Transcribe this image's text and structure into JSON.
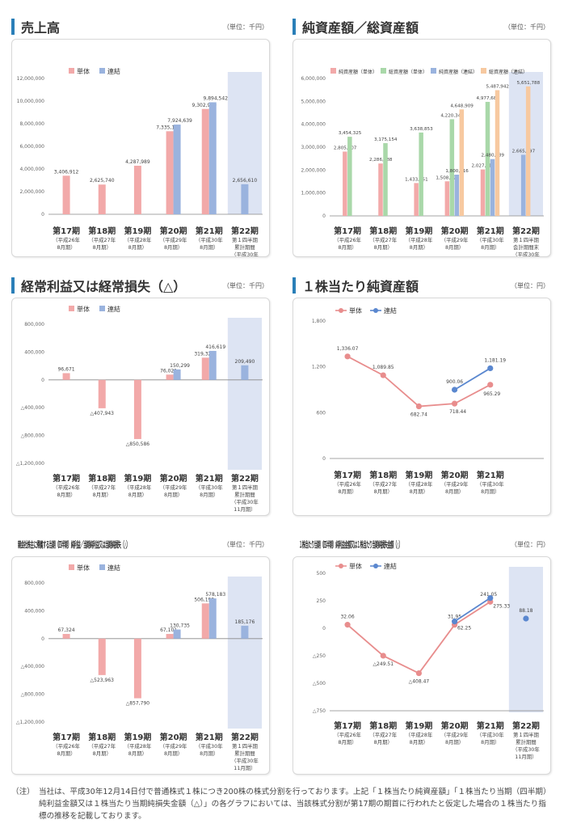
{
  "colors": {
    "single": "#f2a9a9",
    "consol": "#9ab3de",
    "net_single": "#f2a9a9",
    "total_single": "#a9d8a9",
    "net_consol": "#9ab3de",
    "total_consol": "#f7c9a0",
    "shade": "#dde4f3",
    "line_single": "#e88d8d",
    "line_consol": "#5a87cf",
    "axis": "#888",
    "accent": "#2a7fb8"
  },
  "periods": [
    "第17期",
    "第18期",
    "第19期",
    "第20期",
    "第21期",
    "第22期"
  ],
  "period_sub_a": [
    [
      "（平成26年",
      "8月期）"
    ],
    [
      "（平成27年",
      "8月期）"
    ],
    [
      "（平成28年",
      "8月期）"
    ],
    [
      "（平成29年",
      "8月期）"
    ],
    [
      "（平成30年",
      "8月期）"
    ]
  ],
  "last_sub_1": [
    "第１四半期",
    "累計期間",
    "（平成30年",
    "11月期）"
  ],
  "last_sub_2": [
    "第１四半期",
    "会計期間末",
    "（平成30年",
    "11月期）"
  ],
  "sections": {
    "sales": {
      "title": "売上高",
      "unit": "（単位：千円）"
    },
    "assets": {
      "title": "純資産額／総資産額",
      "unit": "（単位：千円）"
    },
    "ordinary": {
      "title": "経常利益又は経常損失（△）",
      "unit": "（単位：千円）"
    },
    "bps": {
      "title": "１株当たり純資産額",
      "unit": "（単位：円）"
    },
    "netincome": {
      "title": "親会社株主に帰属する当期（四半期）純利益／当期純利益又は当期純損失（△）",
      "unit": "（単位：千円）"
    },
    "eps": {
      "title": "１株当たり当期（四半期）純利益金額又は１株当たり当期純損失金額（△）",
      "unit": "（単位：円）"
    }
  },
  "chart_data": [
    {
      "id": "sales",
      "type": "bar",
      "title": "売上高",
      "legend": [
        "単体",
        "連結"
      ],
      "categories": [
        "第17期",
        "第18期",
        "第19期",
        "第20期",
        "第21期",
        "第22期"
      ],
      "ylim": [
        0,
        12000000
      ],
      "yticks": [
        0,
        2000000,
        4000000,
        6000000,
        8000000,
        10000000,
        12000000
      ],
      "ytick_labels": [
        "0",
        "2,000,000",
        "4,000,000",
        "6,000,000",
        "8,000,000",
        "10,000,000",
        "12,000,000"
      ],
      "series": [
        {
          "name": "単体",
          "values": [
            3406912,
            2625740,
            4287989,
            7335181,
            9302979,
            null
          ],
          "labels": [
            "3,406,912",
            "2,625,740",
            "4,287,989",
            "7,335,181",
            "9,302,979",
            ""
          ]
        },
        {
          "name": "連結",
          "values": [
            null,
            null,
            null,
            7924639,
            9894542,
            2656610
          ],
          "labels": [
            "",
            "",
            "",
            "7,924,639",
            "9,894,542",
            "2,656,610"
          ]
        }
      ]
    },
    {
      "id": "assets",
      "type": "bar",
      "title": "純資産額／総資産額",
      "legend": [
        "純資産額（単体）",
        "総資産額（単体）",
        "純資産額（連結）",
        "総資産額（連結）"
      ],
      "categories": [
        "第17期",
        "第18期",
        "第19期",
        "第20期",
        "第21期",
        "第22期"
      ],
      "ylim": [
        0,
        6000000
      ],
      "yticks": [
        0,
        1000000,
        2000000,
        3000000,
        4000000,
        5000000,
        6000000
      ],
      "ytick_labels": [
        "0",
        "1,000,000",
        "2,000,000",
        "3,000,000",
        "4,000,000",
        "5,000,000",
        "6,000,000"
      ],
      "series": [
        {
          "name": "純資産額（単体）",
          "values": [
            2805707,
            2286688,
            1433751,
            1508722,
            2027111,
            null
          ],
          "labels": [
            "2,805,707",
            "2,286,688",
            "1,433,751",
            "1,508,722",
            "2,027,111",
            ""
          ]
        },
        {
          "name": "総資産額（単体）",
          "values": [
            3454325,
            3175154,
            3638853,
            4220341,
            4977685,
            null
          ],
          "labels": [
            "3,454,325",
            "3,175,154",
            "3,638,853",
            "4,220,341",
            "4,977,685",
            ""
          ]
        },
        {
          "name": "純資産額（連結）",
          "values": [
            null,
            null,
            null,
            1800116,
            2480489,
            2665697
          ],
          "labels": [
            "",
            "",
            "",
            "1,800,116",
            "2,480,489",
            "2,665,697"
          ]
        },
        {
          "name": "総資産額（連結）",
          "values": [
            null,
            null,
            null,
            4648909,
            5487942,
            5651788
          ],
          "labels": [
            "",
            "",
            "",
            "4,648,909",
            "5,487,942",
            "5,651,788"
          ]
        }
      ]
    },
    {
      "id": "ordinary",
      "type": "bar",
      "title": "経常利益又は経常損失（△）",
      "legend": [
        "単体",
        "連結"
      ],
      "categories": [
        "第17期",
        "第18期",
        "第19期",
        "第20期",
        "第21期",
        "第22期"
      ],
      "ylim": [
        -1200000,
        800000
      ],
      "yticks": [
        -1200000,
        -800000,
        -400000,
        0,
        400000,
        800000
      ],
      "ytick_labels": [
        "△1,200,000",
        "△800,000",
        "△400,000",
        "0",
        "400,000",
        "800,000"
      ],
      "series": [
        {
          "name": "単体",
          "values": [
            96671,
            -407943,
            -850586,
            76021,
            319329,
            null
          ],
          "labels": [
            "96,671",
            "△407,943",
            "△850,586",
            "76,021",
            "319,329",
            ""
          ]
        },
        {
          "name": "連結",
          "values": [
            null,
            null,
            null,
            150299,
            416619,
            209490
          ],
          "labels": [
            "",
            "",
            "",
            "150,299",
            "416,619",
            "209,490"
          ]
        }
      ]
    },
    {
      "id": "bps",
      "type": "line",
      "title": "１株当たり純資産額",
      "legend": [
        "単体",
        "連結"
      ],
      "categories": [
        "第17期",
        "第18期",
        "第19期",
        "第20期",
        "第21期"
      ],
      "ylim": [
        0,
        1800
      ],
      "yticks": [
        0,
        600,
        1200,
        1800
      ],
      "ytick_labels": [
        "0",
        "600",
        "1,200",
        "1,800"
      ],
      "series": [
        {
          "name": "単体",
          "values": [
            1336.07,
            1089.85,
            682.74,
            718.44,
            965.29
          ],
          "labels": [
            "1,336.07",
            "1,089.85",
            "682.74",
            "718.44",
            "965.29"
          ]
        },
        {
          "name": "連結",
          "values": [
            null,
            null,
            null,
            900.06,
            1181.19
          ],
          "labels": [
            "",
            "",
            "",
            "900.06",
            "1,181.19"
          ]
        }
      ]
    },
    {
      "id": "netincome",
      "type": "bar",
      "title": "親会社株主に帰属する当期（四半期）純利益／当期純利益又は当期純損失（△）",
      "legend": [
        "単体",
        "連結"
      ],
      "categories": [
        "第17期",
        "第18期",
        "第19期",
        "第20期",
        "第21期",
        "第22期"
      ],
      "ylim": [
        -1200000,
        800000
      ],
      "yticks": [
        -1200000,
        -800000,
        -400000,
        0,
        400000,
        800000
      ],
      "ytick_labels": [
        "△1,200,000",
        "△800,000",
        "△400,000",
        "0",
        "400,000",
        "800,000"
      ],
      "series": [
        {
          "name": "単体",
          "values": [
            67324,
            -523963,
            -857790,
            67101,
            506199,
            null
          ],
          "labels": [
            "67,324",
            "△523,963",
            "△857,790",
            "67,101",
            "506,199",
            ""
          ]
        },
        {
          "name": "連結",
          "values": [
            null,
            null,
            null,
            130735,
            578183,
            185176
          ],
          "labels": [
            "",
            "",
            "",
            "130,735",
            "578,183",
            "185,176"
          ]
        }
      ]
    },
    {
      "id": "eps",
      "type": "line",
      "title": "１株当たり当期（四半期）純利益金額又は１株当たり当期純損失金額（△）",
      "legend": [
        "単体",
        "連結"
      ],
      "categories": [
        "第17期",
        "第18期",
        "第19期",
        "第20期",
        "第21期",
        "第22期"
      ],
      "ylim": [
        -750,
        500
      ],
      "yticks": [
        -750,
        -500,
        -250,
        0,
        250,
        500
      ],
      "ytick_labels": [
        "△750",
        "△500",
        "△250",
        "0",
        "250",
        "500"
      ],
      "series": [
        {
          "name": "単体",
          "values": [
            32.06,
            -249.51,
            -408.47,
            31.95,
            241.05,
            null
          ],
          "labels": [
            "32.06",
            "△249.51",
            "△408.47",
            "31.95",
            "241.05",
            ""
          ]
        },
        {
          "name": "連結",
          "values": [
            null,
            null,
            null,
            62.25,
            275.33,
            88.18
          ],
          "labels": [
            "",
            "",
            "",
            "62.25",
            "275.33",
            "88.18"
          ]
        }
      ]
    }
  ],
  "note": {
    "label": "（注）",
    "text": "当社は、平成30年12月14日付で普通株式１株につき200株の株式分割を行っております。上記「１株当たり純資産額」「１株当たり当期（四半期）純利益金額又は１株当たり当期純損失金額（△）」の各グラフにおいては、当該株式分割が第17期の期首に行われたと仮定した場合の１株当たり指標の推移を記載しております。"
  }
}
